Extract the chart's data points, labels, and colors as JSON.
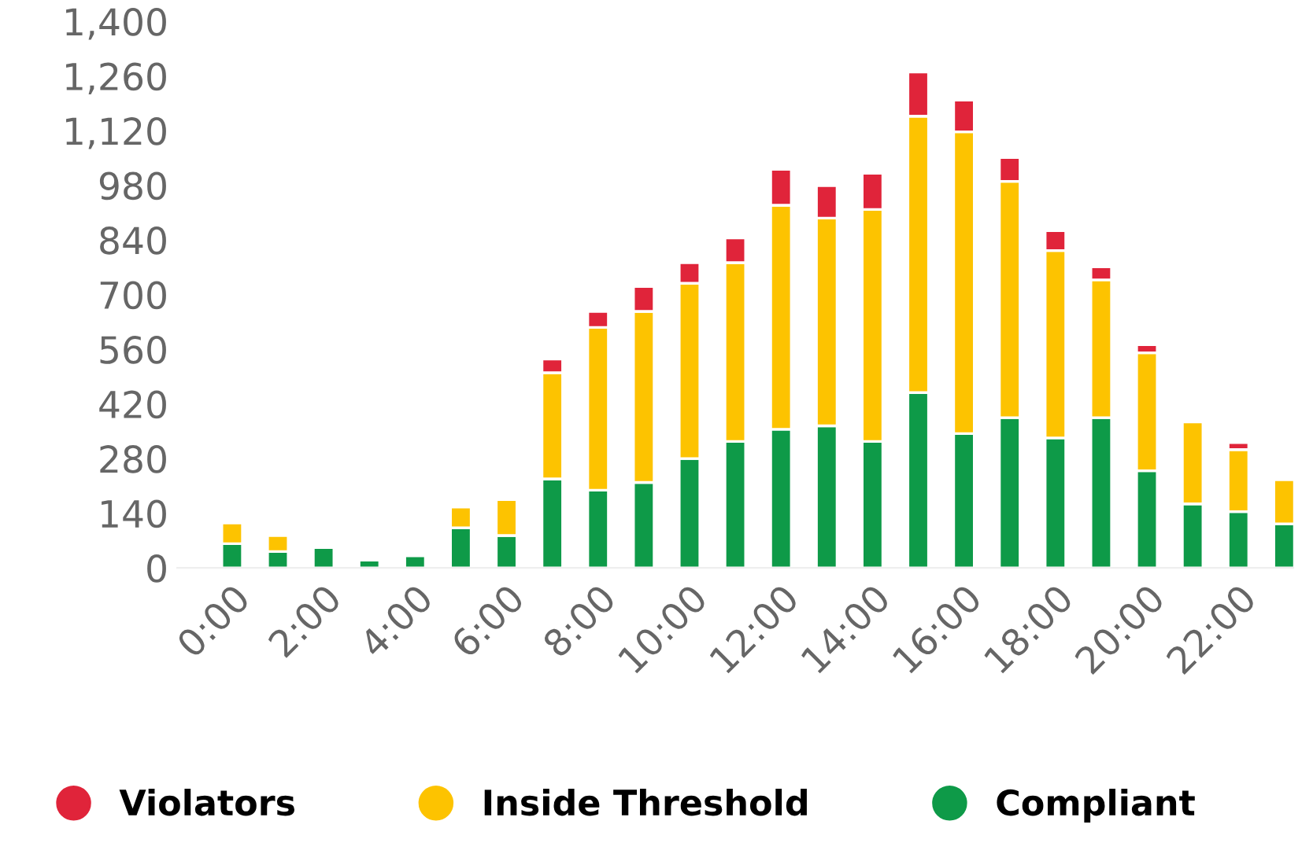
{
  "chart_data": {
    "type": "bar",
    "stacked": true,
    "categories": [
      "0:00",
      null,
      "2:00",
      null,
      "4:00",
      null,
      "6:00",
      null,
      "8:00",
      null,
      "10:00",
      null,
      "12:00",
      null,
      "14:00",
      null,
      "16:00",
      null,
      "18:00",
      null,
      "20:00",
      null,
      "22:00",
      null
    ],
    "series": [
      {
        "name": "Compliant",
        "color": "#0e9a48",
        "values": [
          62,
          42,
          52,
          20,
          31,
          103,
          83,
          228,
          199,
          219,
          280,
          324,
          355,
          364,
          324,
          449,
          344,
          385,
          333,
          385,
          249,
          164,
          144,
          113
        ]
      },
      {
        "name": "Inside Threshold",
        "color": "#fdc300",
        "values": [
          53,
          41,
          null,
          null,
          null,
          53,
          92,
          272,
          417,
          438,
          449,
          458,
          574,
          532,
          594,
          708,
          773,
          605,
          480,
          353,
          302,
          210,
          159,
          113
        ]
      },
      {
        "name": "Violators",
        "color": "#e0243a",
        "values": [
          null,
          null,
          null,
          null,
          null,
          null,
          null,
          35,
          41,
          64,
          53,
          63,
          92,
          83,
          93,
          113,
          81,
          61,
          51,
          33,
          21,
          null,
          18,
          null
        ]
      }
    ],
    "ylim": [
      0,
      1400
    ],
    "yticks": [
      0,
      140,
      280,
      420,
      560,
      700,
      840,
      980,
      {
        "value": 1120,
        "label": "1,120"
      },
      {
        "value": 1260,
        "label": "1,260"
      },
      {
        "value": 1400,
        "label": "1,400"
      }
    ],
    "legend": "bottom"
  }
}
